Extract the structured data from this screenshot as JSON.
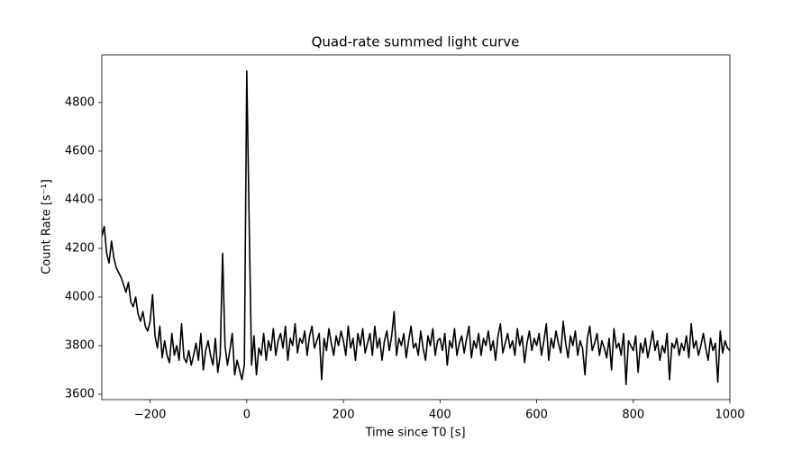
{
  "chart_data": {
    "type": "line",
    "title": "Quad-rate summed light curve",
    "x_label": "Time since T0 [s]",
    "y_label": "Count Rate [s⁻¹]",
    "xlim": [
      -300,
      1000
    ],
    "ylim": [
      3578,
      4996
    ],
    "xticks": [
      {
        "value": -200,
        "label": "−200"
      },
      0,
      200,
      400,
      600,
      800,
      1000
    ],
    "yticks": [
      3600,
      3800,
      4000,
      4200,
      4400,
      4600,
      4800
    ],
    "grid": false,
    "x": [
      -300,
      -295,
      -290,
      -285,
      -280,
      -275,
      -270,
      -265,
      -260,
      -255,
      -250,
      -245,
      -240,
      -235,
      -230,
      -225,
      -220,
      -215,
      -210,
      -205,
      -200,
      -195,
      -190,
      -185,
      -180,
      -175,
      -170,
      -165,
      -160,
      -155,
      -150,
      -145,
      -140,
      -135,
      -130,
      -125,
      -120,
      -115,
      -110,
      -105,
      -100,
      -95,
      -90,
      -85,
      -80,
      -75,
      -70,
      -65,
      -60,
      -55,
      -50,
      -45,
      -40,
      -35,
      -30,
      -25,
      -20,
      -15,
      -10,
      -5,
      0,
      5,
      10,
      15,
      20,
      25,
      30,
      35,
      40,
      45,
      50,
      55,
      60,
      65,
      70,
      75,
      80,
      85,
      90,
      95,
      100,
      105,
      110,
      115,
      120,
      125,
      130,
      135,
      140,
      145,
      150,
      155,
      160,
      165,
      170,
      175,
      180,
      185,
      190,
      195,
      200,
      205,
      210,
      215,
      220,
      225,
      230,
      235,
      240,
      245,
      250,
      255,
      260,
      265,
      270,
      275,
      280,
      285,
      290,
      295,
      300,
      305,
      310,
      315,
      320,
      325,
      330,
      335,
      340,
      345,
      350,
      355,
      360,
      365,
      370,
      375,
      380,
      385,
      390,
      395,
      400,
      405,
      410,
      415,
      420,
      425,
      430,
      435,
      440,
      445,
      450,
      455,
      460,
      465,
      470,
      475,
      480,
      485,
      490,
      495,
      500,
      505,
      510,
      515,
      520,
      525,
      530,
      535,
      540,
      545,
      550,
      555,
      560,
      565,
      570,
      575,
      580,
      585,
      590,
      595,
      600,
      605,
      610,
      615,
      620,
      625,
      630,
      635,
      640,
      645,
      650,
      655,
      660,
      665,
      670,
      675,
      680,
      685,
      690,
      695,
      700,
      705,
      710,
      715,
      720,
      725,
      730,
      735,
      740,
      745,
      750,
      755,
      760,
      765,
      770,
      775,
      780,
      785,
      790,
      795,
      800,
      805,
      810,
      815,
      820,
      825,
      830,
      835,
      840,
      845,
      850,
      855,
      860,
      865,
      870,
      875,
      880,
      885,
      890,
      895,
      900,
      905,
      910,
      915,
      920,
      925,
      930,
      935,
      940,
      945,
      950,
      955,
      960,
      965,
      970,
      975,
      980,
      985,
      990,
      995,
      1000
    ],
    "series": [
      {
        "color": "#000000",
        "values": [
          4250,
          4290,
          4180,
          4140,
          4230,
          4160,
          4120,
          4100,
          4080,
          4050,
          4020,
          4060,
          3980,
          3960,
          4000,
          3930,
          3900,
          3940,
          3880,
          3860,
          3900,
          4010,
          3840,
          3790,
          3880,
          3750,
          3820,
          3760,
          3730,
          3850,
          3760,
          3800,
          3740,
          3890,
          3750,
          3730,
          3780,
          3720,
          3760,
          3810,
          3740,
          3850,
          3700,
          3780,
          3820,
          3760,
          3720,
          3830,
          3690,
          3760,
          4180,
          3800,
          3720,
          3780,
          3850,
          3680,
          3740,
          3700,
          3660,
          3720,
          4930,
          4300,
          3720,
          3840,
          3680,
          3790,
          3760,
          3850,
          3740,
          3820,
          3780,
          3870,
          3760,
          3820,
          3850,
          3790,
          3880,
          3740,
          3830,
          3800,
          3890,
          3770,
          3830,
          3810,
          3860,
          3760,
          3840,
          3880,
          3790,
          3820,
          3850,
          3660,
          3830,
          3780,
          3870,
          3810,
          3760,
          3840,
          3800,
          3860,
          3820,
          3760,
          3880,
          3790,
          3830,
          3740,
          3850,
          3800,
          3870,
          3770,
          3810,
          3850,
          3760,
          3880,
          3790,
          3830,
          3740,
          3820,
          3860,
          3780,
          3840,
          3940,
          3760,
          3830,
          3800,
          3850,
          3750,
          3820,
          3880,
          3790,
          3810,
          3760,
          3860,
          3790,
          3740,
          3840,
          3800,
          3870,
          3760,
          3820,
          3830,
          3780,
          3850,
          3720,
          3820,
          3790,
          3870,
          3760,
          3810,
          3840,
          3770,
          3830,
          3880,
          3750,
          3820,
          3790,
          3850,
          3760,
          3830,
          3800,
          3860,
          3780,
          3820,
          3740,
          3840,
          3890,
          3770,
          3810,
          3850,
          3790,
          3820,
          3760,
          3870,
          3800,
          3840,
          3730,
          3810,
          3860,
          3780,
          3830,
          3800,
          3850,
          3760,
          3820,
          3890,
          3740,
          3830,
          3790,
          3860,
          3810,
          3770,
          3900,
          3810,
          3750,
          3840,
          3800,
          3860,
          3760,
          3820,
          3790,
          3680,
          3830,
          3880,
          3780,
          3810,
          3850,
          3760,
          3820,
          3790,
          3750,
          3830,
          3700,
          3870,
          3790,
          3810,
          3760,
          3850,
          3640,
          3820,
          3800,
          3780,
          3840,
          3690,
          3810,
          3770,
          3830,
          3750,
          3800,
          3860,
          3780,
          3820,
          3740,
          3800,
          3770,
          3850,
          3660,
          3810,
          3790,
          3830,
          3760,
          3810,
          3780,
          3840,
          3750,
          3890,
          3790,
          3820,
          3760,
          3800,
          3850,
          3790,
          3740,
          3830,
          3780,
          3810,
          3650,
          3860,
          3770,
          3820,
          3790,
          3780
        ]
      }
    ]
  }
}
